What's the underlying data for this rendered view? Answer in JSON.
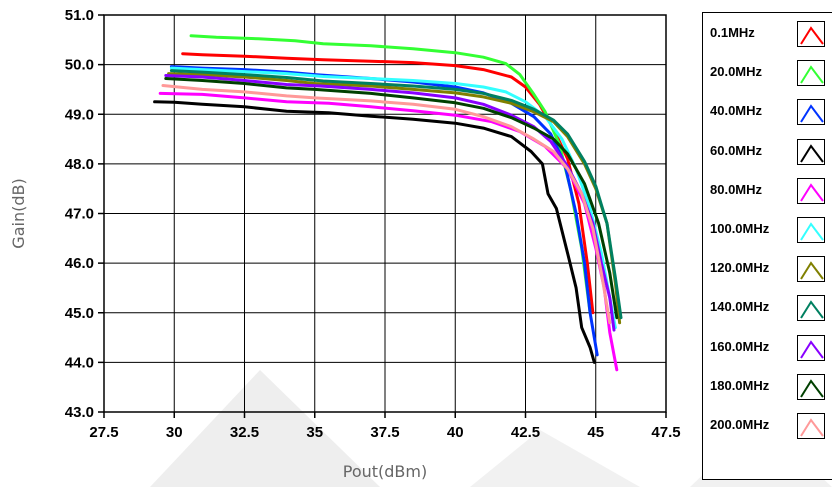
{
  "chart_data": {
    "type": "line",
    "title": "",
    "xlabel": "Pout(dBm)",
    "ylabel": "Gain(dB)",
    "xlim": [
      27.5,
      47.5
    ],
    "ylim": [
      43.0,
      51.0
    ],
    "x_ticks": [
      "27.5",
      "30",
      "32.5",
      "35",
      "37.5",
      "40",
      "42.5",
      "45",
      "47.5"
    ],
    "y_ticks": [
      "43.0",
      "44.0",
      "45.0",
      "46.0",
      "47.0",
      "48.0",
      "49.0",
      "50.0",
      "51.0"
    ],
    "grid": true,
    "legend_position": "right",
    "series": [
      {
        "name": "0.1MHz",
        "color": "#ff0000",
        "points": [
          [
            30.3,
            50.22
          ],
          [
            31,
            50.2
          ],
          [
            32.5,
            50.17
          ],
          [
            34,
            50.13
          ],
          [
            35.3,
            50.1
          ],
          [
            37,
            50.07
          ],
          [
            38.5,
            50.04
          ],
          [
            40,
            49.98
          ],
          [
            41,
            49.9
          ],
          [
            42,
            49.75
          ],
          [
            42.5,
            49.55
          ],
          [
            43,
            49.2
          ],
          [
            43.5,
            48.7
          ],
          [
            44,
            48.1
          ],
          [
            44.4,
            47.2
          ],
          [
            44.7,
            46.0
          ],
          [
            44.9,
            45.0
          ]
        ]
      },
      {
        "name": "20.0MHz",
        "color": "#33ff33",
        "points": [
          [
            30.6,
            50.58
          ],
          [
            31.5,
            50.55
          ],
          [
            33,
            50.52
          ],
          [
            34.3,
            50.48
          ],
          [
            35.3,
            50.42
          ],
          [
            37,
            50.38
          ],
          [
            38.5,
            50.32
          ],
          [
            40,
            50.24
          ],
          [
            41,
            50.15
          ],
          [
            41.8,
            50.02
          ],
          [
            42.3,
            49.8
          ],
          [
            42.8,
            49.4
          ],
          [
            43.2,
            49.05
          ],
          [
            43.7,
            48.4
          ],
          [
            44.1,
            47.5
          ],
          [
            44.5,
            46.3
          ],
          [
            44.8,
            45.0
          ]
        ]
      },
      {
        "name": "40.0MHz",
        "color": "#0033ff",
        "points": [
          [
            29.9,
            49.96
          ],
          [
            31,
            49.93
          ],
          [
            32.5,
            49.9
          ],
          [
            34,
            49.85
          ],
          [
            35,
            49.8
          ],
          [
            37,
            49.72
          ],
          [
            38.5,
            49.65
          ],
          [
            40,
            49.55
          ],
          [
            41,
            49.43
          ],
          [
            42,
            49.22
          ],
          [
            42.8,
            48.95
          ],
          [
            43.4,
            48.6
          ],
          [
            43.9,
            48.0
          ],
          [
            44.3,
            47.0
          ],
          [
            44.6,
            46.0
          ],
          [
            44.8,
            45.0
          ],
          [
            45.05,
            44.15
          ]
        ]
      },
      {
        "name": "60.0MHz",
        "color": "#000000",
        "points": [
          [
            29.3,
            49.25
          ],
          [
            30,
            49.24
          ],
          [
            31,
            49.2
          ],
          [
            32.5,
            49.15
          ],
          [
            34,
            49.06
          ],
          [
            35.5,
            49.03
          ],
          [
            37,
            48.96
          ],
          [
            38.5,
            48.9
          ],
          [
            40,
            48.82
          ],
          [
            41,
            48.72
          ],
          [
            42,
            48.55
          ],
          [
            42.7,
            48.25
          ],
          [
            43.1,
            48.0
          ],
          [
            43.3,
            47.4
          ],
          [
            43.6,
            47.1
          ],
          [
            44.0,
            46.2
          ],
          [
            44.3,
            45.5
          ],
          [
            44.5,
            44.7
          ],
          [
            44.8,
            44.3
          ],
          [
            44.95,
            44.0
          ]
        ]
      },
      {
        "name": "80.0MHz",
        "color": "#ff00ff",
        "points": [
          [
            29.5,
            49.42
          ],
          [
            31,
            49.4
          ],
          [
            32.5,
            49.33
          ],
          [
            34,
            49.25
          ],
          [
            35.5,
            49.22
          ],
          [
            37,
            49.15
          ],
          [
            38.5,
            49.07
          ],
          [
            40,
            48.98
          ],
          [
            41.3,
            48.85
          ],
          [
            42.3,
            48.65
          ],
          [
            43.2,
            48.35
          ],
          [
            44,
            47.9
          ],
          [
            44.6,
            47.2
          ],
          [
            45.0,
            46.3
          ],
          [
            45.3,
            45.5
          ],
          [
            45.5,
            44.6
          ],
          [
            45.75,
            43.85
          ]
        ]
      },
      {
        "name": "100.0MHz",
        "color": "#33ffff",
        "points": [
          [
            29.9,
            49.93
          ],
          [
            31,
            49.9
          ],
          [
            32.5,
            49.86
          ],
          [
            34,
            49.82
          ],
          [
            35.3,
            49.76
          ],
          [
            37,
            49.72
          ],
          [
            38.5,
            49.68
          ],
          [
            40,
            49.62
          ],
          [
            41,
            49.55
          ],
          [
            41.8,
            49.45
          ],
          [
            42.5,
            49.25
          ],
          [
            43.2,
            48.95
          ],
          [
            43.8,
            48.5
          ],
          [
            44.3,
            47.9
          ],
          [
            44.8,
            47.1
          ],
          [
            45.2,
            46.2
          ],
          [
            45.5,
            45.3
          ],
          [
            45.7,
            44.7
          ]
        ]
      },
      {
        "name": "120.0MHz",
        "color": "#808000",
        "points": [
          [
            29.8,
            49.82
          ],
          [
            31,
            49.8
          ],
          [
            32.5,
            49.75
          ],
          [
            34,
            49.68
          ],
          [
            35,
            49.62
          ],
          [
            37,
            49.57
          ],
          [
            38.5,
            49.5
          ],
          [
            40,
            49.43
          ],
          [
            41,
            49.35
          ],
          [
            42,
            49.22
          ],
          [
            42.8,
            49.05
          ],
          [
            43.5,
            48.85
          ],
          [
            44,
            48.55
          ],
          [
            44.6,
            48.0
          ],
          [
            45,
            47.5
          ],
          [
            45.4,
            46.8
          ],
          [
            45.7,
            45.6
          ],
          [
            45.85,
            44.8
          ]
        ]
      },
      {
        "name": "140.0MHz",
        "color": "#008060",
        "points": [
          [
            29.9,
            49.88
          ],
          [
            31,
            49.85
          ],
          [
            32.5,
            49.8
          ],
          [
            34,
            49.74
          ],
          [
            35.3,
            49.67
          ],
          [
            37,
            49.62
          ],
          [
            38.5,
            49.57
          ],
          [
            40,
            49.5
          ],
          [
            41,
            49.42
          ],
          [
            42,
            49.28
          ],
          [
            42.8,
            49.1
          ],
          [
            43.5,
            48.88
          ],
          [
            44.0,
            48.6
          ],
          [
            44.6,
            48.05
          ],
          [
            45.0,
            47.55
          ],
          [
            45.4,
            46.8
          ],
          [
            45.7,
            45.7
          ],
          [
            45.9,
            44.9
          ]
        ]
      },
      {
        "name": "160.0MHz",
        "color": "#8800ff",
        "points": [
          [
            29.7,
            49.78
          ],
          [
            31,
            49.75
          ],
          [
            32.5,
            49.68
          ],
          [
            34,
            49.6
          ],
          [
            35.2,
            49.57
          ],
          [
            37,
            49.5
          ],
          [
            38.5,
            49.43
          ],
          [
            40,
            49.33
          ],
          [
            41,
            49.2
          ],
          [
            42,
            48.98
          ],
          [
            42.8,
            48.75
          ],
          [
            43.4,
            48.45
          ],
          [
            44.0,
            47.95
          ],
          [
            44.5,
            47.4
          ],
          [
            44.9,
            46.8
          ],
          [
            45.2,
            46.0
          ],
          [
            45.5,
            45.3
          ],
          [
            45.65,
            44.65
          ]
        ]
      },
      {
        "name": "180.0MHz",
        "color": "#004000",
        "points": [
          [
            29.7,
            49.72
          ],
          [
            31,
            49.68
          ],
          [
            32.5,
            49.62
          ],
          [
            34,
            49.53
          ],
          [
            35,
            49.5
          ],
          [
            37,
            49.42
          ],
          [
            38.5,
            49.33
          ],
          [
            40,
            49.23
          ],
          [
            41,
            49.12
          ],
          [
            42,
            48.93
          ],
          [
            42.8,
            48.72
          ],
          [
            43.5,
            48.5
          ],
          [
            44.0,
            48.2
          ],
          [
            44.6,
            47.6
          ],
          [
            45.1,
            46.8
          ],
          [
            45.5,
            45.8
          ],
          [
            45.75,
            44.9
          ]
        ]
      },
      {
        "name": "200.0MHz",
        "color": "#ff9999",
        "points": [
          [
            29.6,
            49.58
          ],
          [
            31,
            49.5
          ],
          [
            32.5,
            49.45
          ],
          [
            34,
            49.37
          ],
          [
            35,
            49.33
          ],
          [
            37,
            49.27
          ],
          [
            38.5,
            49.2
          ],
          [
            40,
            49.1
          ],
          [
            41,
            48.95
          ],
          [
            42,
            48.75
          ],
          [
            42.8,
            48.5
          ],
          [
            43.5,
            48.25
          ],
          [
            44,
            47.9
          ],
          [
            44.5,
            47.4
          ],
          [
            44.9,
            46.7
          ],
          [
            45.2,
            45.8
          ],
          [
            45.5,
            44.8
          ]
        ]
      }
    ]
  }
}
